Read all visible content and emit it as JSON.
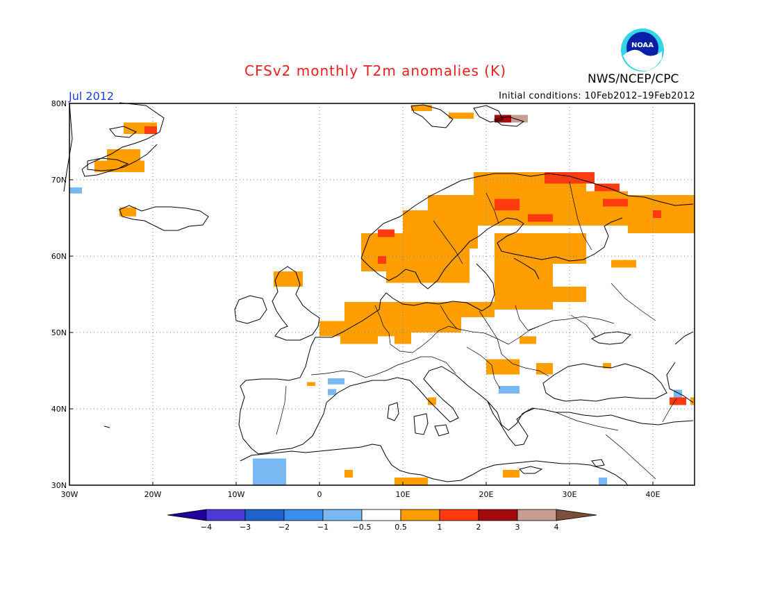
{
  "title": "CFSv2 monthly T2m anomalies (K)",
  "agency": "NWS/NCEP/CPC",
  "logo_text": "NOAA",
  "month": "Jul 2012",
  "initial_conditions": "Initial conditions: 10Feb2012–19Feb2012",
  "lon_labels": [
    "30W",
    "20W",
    "10W",
    "0",
    "10E",
    "20E",
    "30E",
    "40E"
  ],
  "lon_values": [
    -30,
    -20,
    -10,
    0,
    10,
    20,
    30,
    40
  ],
  "lat_labels": [
    "30N",
    "40N",
    "50N",
    "60N",
    "70N",
    "80N"
  ],
  "lat_values": [
    30,
    40,
    50,
    60,
    70,
    80
  ],
  "extent": {
    "lon": [
      -30,
      45
    ],
    "lat": [
      30,
      80
    ]
  },
  "colorbar": {
    "tick_labels": [
      "−4",
      "−3",
      "−2",
      "−1",
      "−0.5",
      "0.5",
      "1",
      "2",
      "3",
      "4"
    ],
    "colors": [
      "#1f009a",
      "#4b39d6",
      "#1e62cf",
      "#3a8ef0",
      "#7ab8f4",
      "#ffffff",
      "#ff9e00",
      "#ff3a0f",
      "#a40a0a",
      "#c79e92",
      "#7c4e3c"
    ]
  },
  "colors": {
    "c05": "#ff9e00",
    "c1": "#ff3a0f",
    "c2": "#a40a0a",
    "c3": "#c79e92",
    "n05": "#7ab8f4",
    "coast": "#000000",
    "grid": "#808080",
    "title": "#e8201e",
    "month": "#1a3fdc"
  },
  "anomaly_cells": [
    {
      "lon": [
        -23.5,
        -19.5
      ],
      "lat": [
        76,
        77.5
      ],
      "v": "c05"
    },
    {
      "lon": [
        -21,
        -19.5
      ],
      "lat": [
        76,
        77
      ],
      "v": "c1"
    },
    {
      "lon": [
        -25.5,
        -21.5
      ],
      "lat": [
        72.5,
        74
      ],
      "v": "c05"
    },
    {
      "lon": [
        -27,
        -21
      ],
      "lat": [
        71,
        72.5
      ],
      "v": "c05"
    },
    {
      "lon": [
        -24,
        -22
      ],
      "lat": [
        65.2,
        66.4
      ],
      "v": "c05"
    },
    {
      "lon": [
        -31,
        -28.5
      ],
      "lat": [
        68.2,
        69
      ],
      "v": "n05"
    },
    {
      "lon": [
        11,
        13.5
      ],
      "lat": [
        79,
        79.8
      ],
      "v": "c05"
    },
    {
      "lon": [
        15.5,
        18.5
      ],
      "lat": [
        78,
        78.8
      ],
      "v": "c05"
    },
    {
      "lon": [
        21,
        23
      ],
      "lat": [
        77.5,
        78.5
      ],
      "v": "c2"
    },
    {
      "lon": [
        23,
        25
      ],
      "lat": [
        77.5,
        78.5
      ],
      "v": "c3"
    },
    {
      "lon": [
        18.5,
        32
      ],
      "lat": [
        64,
        71
      ],
      "v": "c05"
    },
    {
      "lon": [
        27,
        33
      ],
      "lat": [
        69.5,
        71
      ],
      "v": "c1"
    },
    {
      "lon": [
        33,
        36
      ],
      "lat": [
        68.5,
        69.5
      ],
      "v": "c1"
    },
    {
      "lon": [
        21,
        24
      ],
      "lat": [
        66,
        67.5
      ],
      "v": "c1"
    },
    {
      "lon": [
        25,
        28
      ],
      "lat": [
        64.5,
        65.5
      ],
      "v": "c1"
    },
    {
      "lon": [
        13,
        19
      ],
      "lat": [
        61,
        68
      ],
      "v": "c05"
    },
    {
      "lon": [
        10,
        13
      ],
      "lat": [
        61,
        66
      ],
      "v": "c05"
    },
    {
      "lon": [
        5,
        10
      ],
      "lat": [
        58,
        63
      ],
      "v": "c05"
    },
    {
      "lon": [
        7,
        9
      ],
      "lat": [
        62.5,
        63.5
      ],
      "v": "c1"
    },
    {
      "lon": [
        7,
        10
      ],
      "lat": [
        59,
        60
      ],
      "v": "c1"
    },
    {
      "lon": [
        8,
        18
      ],
      "lat": [
        56.5,
        61
      ],
      "v": "c05"
    },
    {
      "lon": [
        31,
        37
      ],
      "lat": [
        64,
        68.5
      ],
      "v": "c05"
    },
    {
      "lon": [
        34,
        38
      ],
      "lat": [
        66.5,
        67.5
      ],
      "v": "c1"
    },
    {
      "lon": [
        37,
        45
      ],
      "lat": [
        63,
        68
      ],
      "v": "c05"
    },
    {
      "lon": [
        40,
        41
      ],
      "lat": [
        65,
        66
      ],
      "v": "c1"
    },
    {
      "lon": [
        21,
        32
      ],
      "lat": [
        59,
        63
      ],
      "v": "c05"
    },
    {
      "lon": [
        21,
        28
      ],
      "lat": [
        53,
        59
      ],
      "v": "c05"
    },
    {
      "lon": [
        28,
        32
      ],
      "lat": [
        54,
        56
      ],
      "v": "c05"
    },
    {
      "lon": [
        35,
        38
      ],
      "lat": [
        58.5,
        59.5
      ],
      "v": "c05"
    },
    {
      "lon": [
        -5.5,
        -2
      ],
      "lat": [
        56,
        58
      ],
      "v": "c05"
    },
    {
      "lon": [
        3,
        12
      ],
      "lat": [
        51,
        54
      ],
      "v": "c05"
    },
    {
      "lon": [
        12,
        21
      ],
      "lat": [
        52,
        54
      ],
      "v": "c05"
    },
    {
      "lon": [
        0,
        10
      ],
      "lat": [
        49.5,
        51.5
      ],
      "v": "c05"
    },
    {
      "lon": [
        9,
        17
      ],
      "lat": [
        50,
        52
      ],
      "v": "c05"
    },
    {
      "lon": [
        2.5,
        7
      ],
      "lat": [
        48.5,
        50
      ],
      "v": "c05"
    },
    {
      "lon": [
        9,
        11
      ],
      "lat": [
        48.5,
        50
      ],
      "v": "c05"
    },
    {
      "lon": [
        20,
        24
      ],
      "lat": [
        44.5,
        46.5
      ],
      "v": "c05"
    },
    {
      "lon": [
        26,
        28
      ],
      "lat": [
        44.5,
        46
      ],
      "v": "c05"
    },
    {
      "lon": [
        24,
        26
      ],
      "lat": [
        48.5,
        49.5
      ],
      "v": "c05"
    },
    {
      "lon": [
        34,
        35
      ],
      "lat": [
        45.3,
        46
      ],
      "v": "c05"
    },
    {
      "lon": [
        21.5,
        24
      ],
      "lat": [
        42,
        43
      ],
      "v": "n05"
    },
    {
      "lon": [
        1,
        3
      ],
      "lat": [
        43.2,
        44
      ],
      "v": "n05"
    },
    {
      "lon": [
        -8,
        -4
      ],
      "lat": [
        30,
        33.5
      ],
      "v": "n05"
    },
    {
      "lon": [
        33.5,
        34.5
      ],
      "lat": [
        30,
        31
      ],
      "v": "n05"
    },
    {
      "lon": [
        9,
        13
      ],
      "lat": [
        30,
        31
      ],
      "v": "c05"
    },
    {
      "lon": [
        22,
        24
      ],
      "lat": [
        31,
        32
      ],
      "v": "c05"
    },
    {
      "lon": [
        3,
        4
      ],
      "lat": [
        31,
        32
      ],
      "v": "c05"
    },
    {
      "lon": [
        42,
        44
      ],
      "lat": [
        40.5,
        41.5
      ],
      "v": "c1"
    },
    {
      "lon": [
        44.5,
        45
      ],
      "lat": [
        40.5,
        41.5
      ],
      "v": "c05"
    },
    {
      "lon": [
        42.5,
        43.5
      ],
      "lat": [
        41.5,
        42.5
      ],
      "v": "n05"
    },
    {
      "lon": [
        13,
        14
      ],
      "lat": [
        40.5,
        41.5
      ],
      "v": "c05"
    },
    {
      "lon": [
        -1.5,
        -0.5
      ],
      "lat": [
        43,
        43.5
      ],
      "v": "c05"
    },
    {
      "lon": [
        1,
        2
      ],
      "lat": [
        41.8,
        42.6
      ],
      "v": "n05"
    }
  ]
}
